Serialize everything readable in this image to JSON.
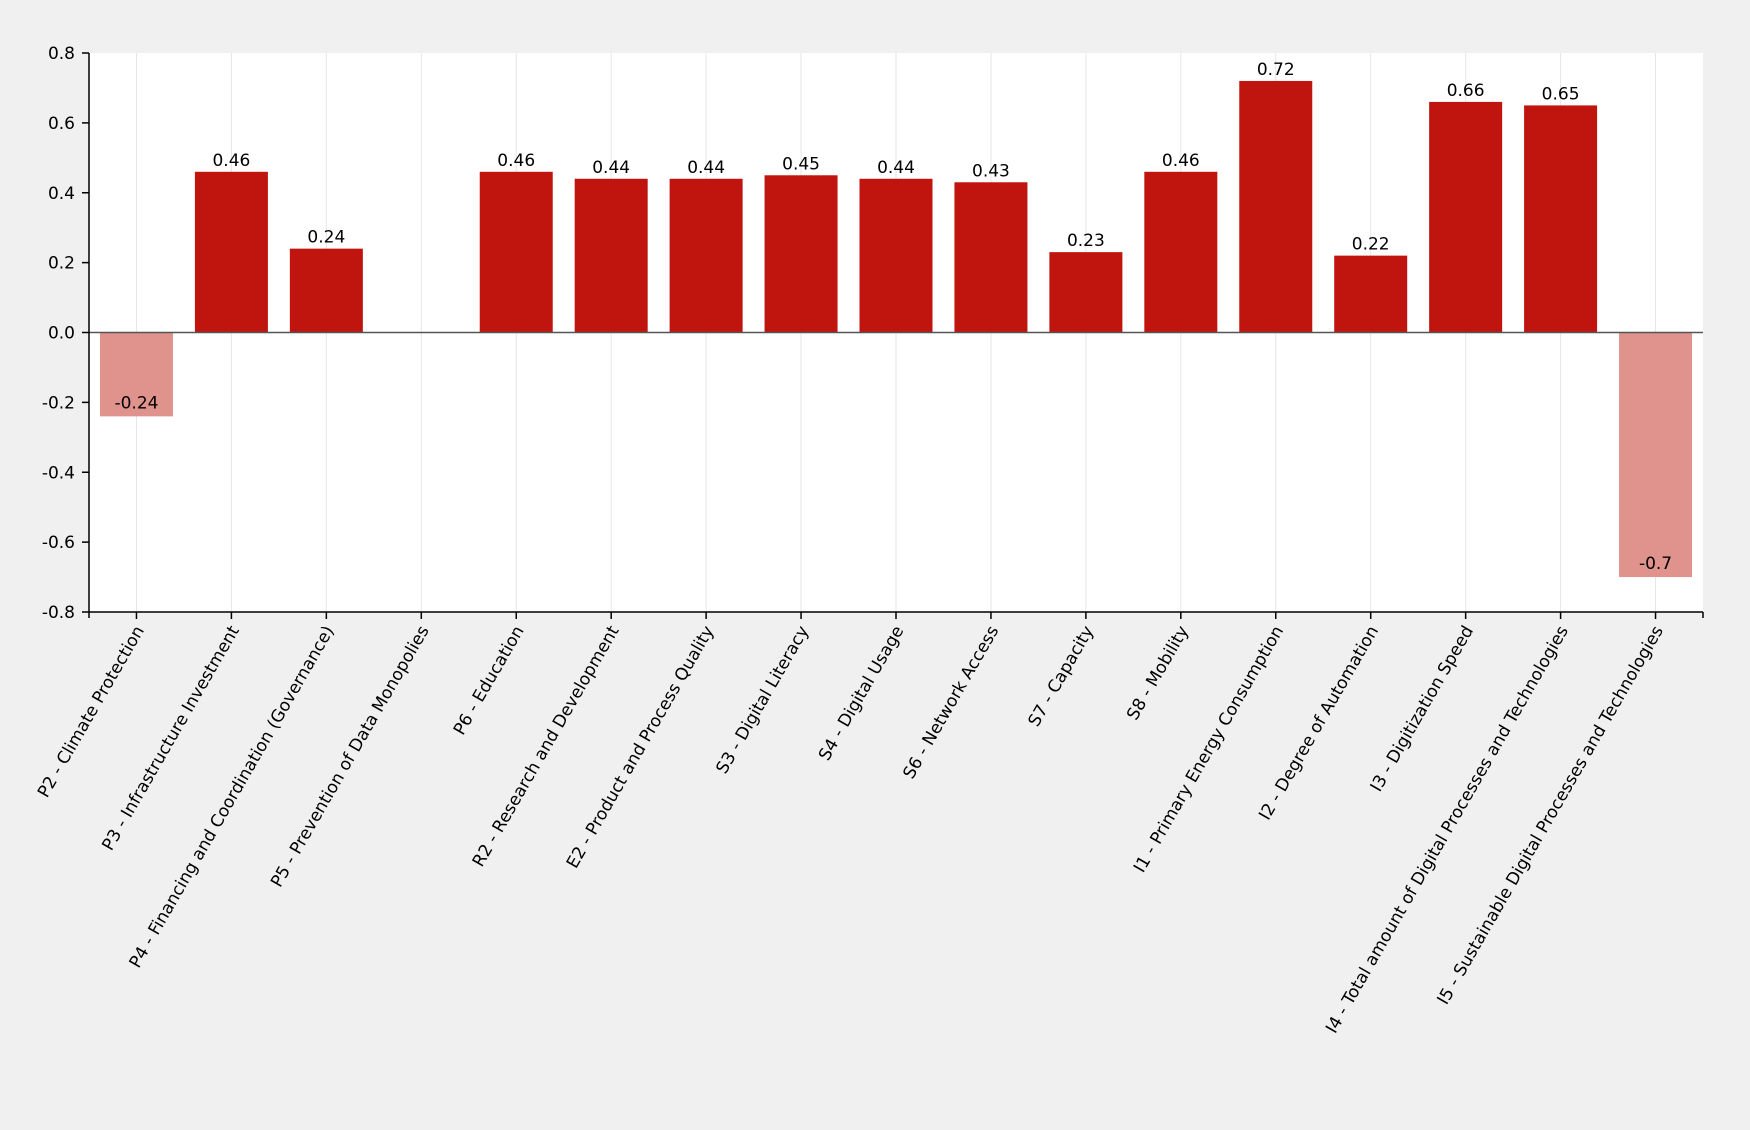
{
  "chart_data": {
    "type": "bar",
    "categories": [
      "P2 - Climate Protection",
      "P3 - Infrastructure Investment",
      "P4 - Financing and Coordination (Governance)",
      "P5 - Prevention of Data Monopolies",
      "P6 - Education",
      "R2 - Research and Development",
      "E2 - Product and Process Quality",
      "S3 - Digital Literacy",
      "S4 - Digital Usage",
      "S6 - Network Access",
      "S7 - Capacity",
      "S8 - Mobility",
      "I1 - Primary Energy Consumption",
      "I2 - Degree of Automation",
      "I3 - Digitization Speed",
      "I4 - Total amount of Digital Processes and Technologies",
      "I5 - Sustainable Digital Processes and Technologies"
    ],
    "values": [
      -0.24,
      0.46,
      0.24,
      null,
      0.46,
      0.44,
      0.44,
      0.45,
      0.44,
      0.43,
      0.23,
      0.46,
      0.72,
      0.22,
      0.66,
      0.65,
      -0.7
    ],
    "data_labels": [
      "-0.24",
      "0.46",
      "0.24",
      "",
      "0.46",
      "0.44",
      "0.44",
      "0.45",
      "0.44",
      "0.43",
      "0.23",
      "0.46",
      "0.72",
      "0.22",
      "0.66",
      "0.65",
      "-0.7"
    ],
    "yticks": [
      "-0.8",
      "-0.6",
      "-0.4",
      "-0.2",
      "0.0",
      "0.2",
      "0.4",
      "0.6",
      "0.8"
    ],
    "ylim": [
      -0.8,
      0.8
    ],
    "title": "",
    "xlabel": "",
    "ylabel": "",
    "grid": "vertical",
    "colors": {
      "positive": "#c0150f",
      "negative": "#e0928d",
      "plot_background": "#ffffff",
      "page_background": "#f0f0f0",
      "grid": "#e6e6e6",
      "axis": "#000000"
    }
  }
}
